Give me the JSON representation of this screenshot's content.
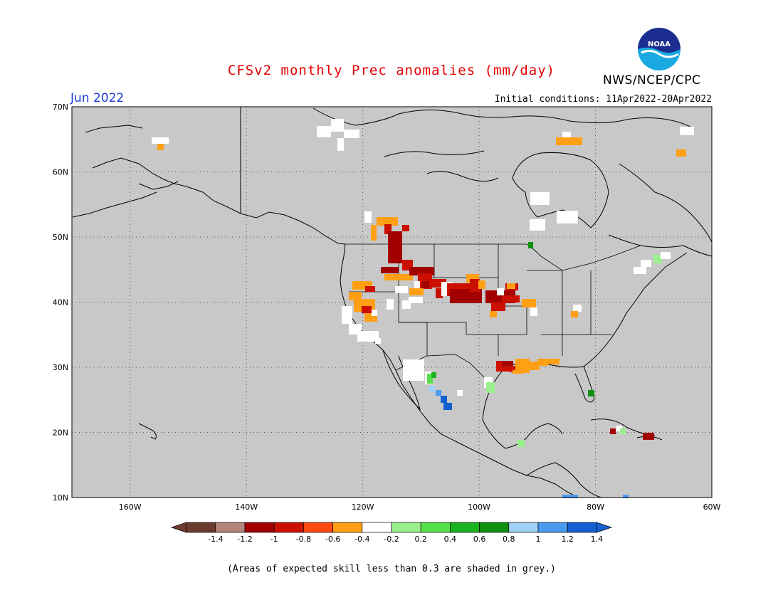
{
  "title": "CFSv2 monthly Prec anomalies (mm/day)",
  "agency": "NWS/NCEP/CPC",
  "logo_text": "NOAA",
  "month": "Jun 2022",
  "initial_conditions": "Initial conditions: 11Apr2022-20Apr2022",
  "footnote": "(Areas of expected skill less than 0.3 are shaded in grey.)",
  "map": {
    "lon_range": [
      -170,
      -60
    ],
    "lat_range": [
      10,
      70
    ],
    "x_ticks": [
      "160W",
      "140W",
      "120W",
      "100W",
      "80W",
      "60W"
    ],
    "y_ticks": [
      "70N",
      "60N",
      "50N",
      "40N",
      "30N",
      "20N",
      "10N"
    ],
    "background": "#c8c8c8",
    "grid": "dotted"
  },
  "colorbar": {
    "labels": [
      "-1.4",
      "-1.2",
      "-1",
      "-0.8",
      "-0.6",
      "-0.4",
      "-0.2",
      "0.2",
      "0.4",
      "0.6",
      "0.8",
      "1",
      "1.2",
      "1.4"
    ],
    "colors": [
      "#6b3b2f",
      "#b3857a",
      "#a30000",
      "#cc1000",
      "#ff4a10",
      "#ffa014",
      "#ffffff",
      "#99f08c",
      "#55e04d",
      "#1ab31f",
      "#109010",
      "#a0d2f8",
      "#4a9af0",
      "#1460d2"
    ]
  },
  "colors": {
    "title": "#e60000",
    "month": "#1d3bd6",
    "white": "#ffffff",
    "orange": "#ffa014",
    "red_orange": "#ff4a10",
    "red": "#cc1000",
    "dark_red": "#a30000",
    "light_green": "#99f08c",
    "green": "#55e04d",
    "mid_green": "#1ab31f",
    "dark_green": "#109010",
    "light_blue": "#a0d2f8",
    "blue": "#4a9af0",
    "dark_blue": "#1460d2"
  }
}
